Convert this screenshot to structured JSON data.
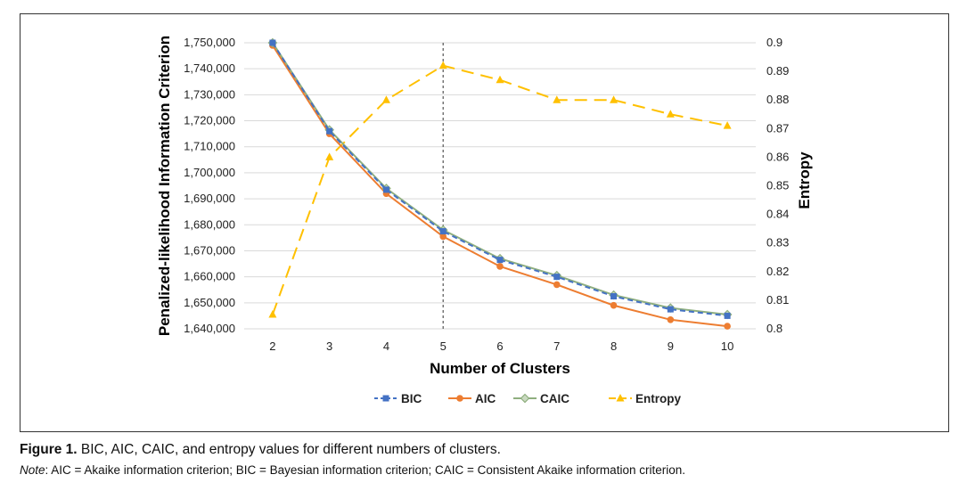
{
  "figure": {
    "caption_label": "Figure 1.",
    "caption_text": " BIC, AIC, CAIC, and entropy values for different numbers of clusters.",
    "note_label": "Note",
    "note_text": ": AIC = Akaike information criterion; BIC = Bayesian information criterion; CAIC = Consistent Akaike information criterion."
  },
  "chart_data": {
    "type": "line",
    "xlabel": "Number of Clusters",
    "ylabel": "Penalized-likelihood Information Criterion",
    "y2label": "Entropy",
    "categories": [
      2,
      3,
      4,
      5,
      6,
      7,
      8,
      9,
      10
    ],
    "ylim": [
      1640000,
      1750000
    ],
    "y_ticks": [
      "1,640,000",
      "1,650,000",
      "1,660,000",
      "1,670,000",
      "1,680,000",
      "1,690,000",
      "1,700,000",
      "1,710,000",
      "1,720,000",
      "1,730,000",
      "1,740,000",
      "1,750,000"
    ],
    "y2lim": [
      0.8,
      0.9
    ],
    "y2_ticks": [
      "0.8",
      "0.81",
      "0.82",
      "0.83",
      "0.84",
      "0.85",
      "0.86",
      "0.87",
      "0.88",
      "0.89",
      "0.9"
    ],
    "reference_line_x": 5,
    "grid": true,
    "legend_position": "bottom",
    "series": [
      {
        "name": "BIC",
        "axis": "left",
        "color": "#4472C4",
        "marker": "square",
        "dash": "6,4",
        "values": [
          1750000,
          1716000,
          1693500,
          1677500,
          1666500,
          1660000,
          1652500,
          1647500,
          1645000
        ]
      },
      {
        "name": "AIC",
        "axis": "left",
        "color": "#ED7D31",
        "marker": "circle",
        "dash": "",
        "values": [
          1749000,
          1715000,
          1692000,
          1675500,
          1664000,
          1657000,
          1649000,
          1643500,
          1641000
        ]
      },
      {
        "name": "CAIC",
        "axis": "left",
        "color": "#8FAF7F",
        "marker": "diamond",
        "dash": "",
        "values": [
          1750000,
          1716500,
          1694000,
          1678000,
          1667000,
          1660500,
          1653000,
          1648000,
          1645500
        ]
      },
      {
        "name": "Entropy",
        "axis": "right",
        "color": "#FFC000",
        "marker": "triangle",
        "dash": "14,8",
        "values": [
          0.805,
          0.86,
          0.88,
          0.892,
          0.887,
          0.88,
          0.88,
          0.875,
          0.871
        ]
      }
    ]
  }
}
